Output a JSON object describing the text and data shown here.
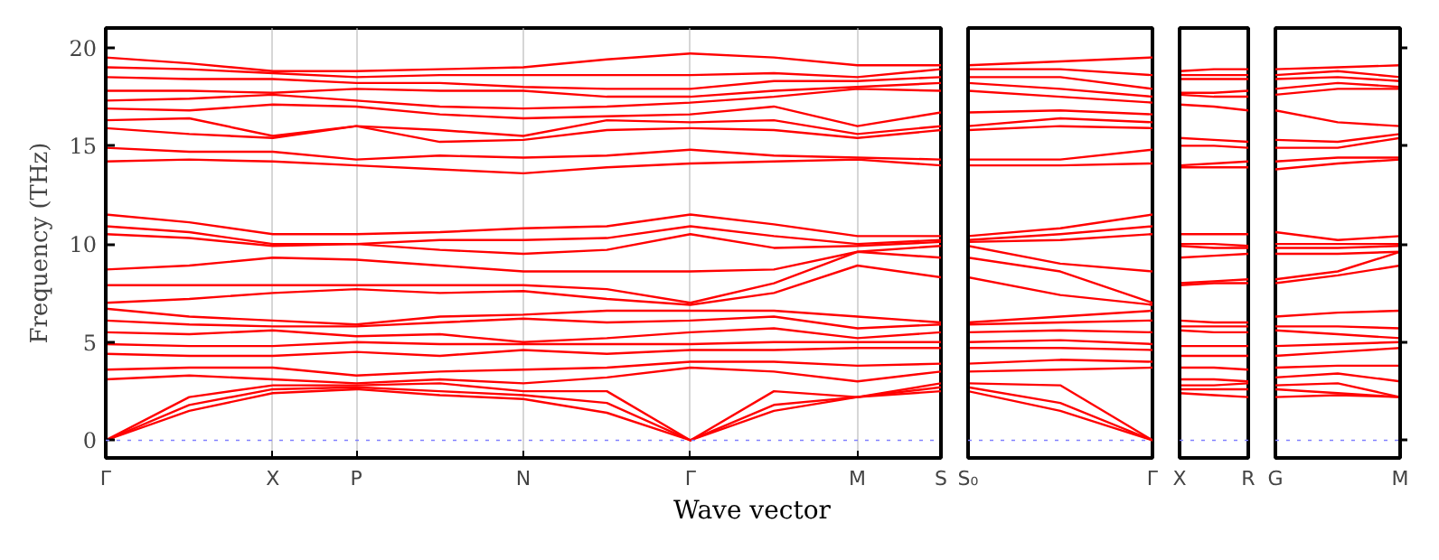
{
  "chart_data": [
    {
      "type": "line",
      "ylabel": "Frequency (THz)",
      "xlabel": "Wave vector",
      "ylim": [
        -0.9,
        21
      ],
      "yticks": [
        0,
        5,
        10,
        15,
        20
      ],
      "categories": [
        "Γ",
        null,
        "X",
        "P",
        null,
        "N",
        null,
        "Γ",
        null,
        "M",
        "S"
      ],
      "grid": "x",
      "ref_lines": [
        {
          "axis": "y",
          "value": 0,
          "color": "#8080ff",
          "line_style": "dotted"
        }
      ],
      "series": [
        {
          "color": "#ff0000",
          "values": [
            0,
            1.5,
            2.4,
            2.6,
            2.3,
            2.1,
            1.4,
            0,
            1.5,
            2.2,
            2.5
          ]
        },
        {
          "color": "#ff0000",
          "values": [
            0,
            1.8,
            2.6,
            2.7,
            2.5,
            2.3,
            1.9,
            0,
            1.8,
            2.2,
            2.7
          ]
        },
        {
          "color": "#ff0000",
          "values": [
            0,
            2.2,
            2.8,
            2.8,
            2.9,
            2.5,
            2.5,
            0,
            2.5,
            2.2,
            2.9
          ]
        },
        {
          "color": "#ff0000",
          "values": [
            3.1,
            3.3,
            3.1,
            2.9,
            3.1,
            2.9,
            3.2,
            3.7,
            3.5,
            3.0,
            3.5
          ]
        },
        {
          "color": "#ff0000",
          "values": [
            3.6,
            3.7,
            3.7,
            3.3,
            3.5,
            3.6,
            3.7,
            4.0,
            4.0,
            3.8,
            3.9
          ]
        },
        {
          "color": "#ff0000",
          "values": [
            4.4,
            4.3,
            4.3,
            4.5,
            4.3,
            4.6,
            4.4,
            4.6,
            4.6,
            4.7,
            4.7
          ]
        },
        {
          "color": "#ff0000",
          "values": [
            4.9,
            4.8,
            4.8,
            5.0,
            4.9,
            4.9,
            4.9,
            4.9,
            5.0,
            5.0,
            5.0
          ]
        },
        {
          "color": "#ff0000",
          "values": [
            5.5,
            5.4,
            5.6,
            5.3,
            5.4,
            5.0,
            5.2,
            5.5,
            5.7,
            5.2,
            5.5
          ]
        },
        {
          "color": "#ff0000",
          "values": [
            6.1,
            5.9,
            5.8,
            5.8,
            6.0,
            6.2,
            6.0,
            6.1,
            6.3,
            5.7,
            5.9
          ]
        },
        {
          "color": "#ff0000",
          "values": [
            6.7,
            6.3,
            6.1,
            5.9,
            6.3,
            6.4,
            6.6,
            6.6,
            6.6,
            6.3,
            6.0
          ]
        },
        {
          "color": "#ff0000",
          "values": [
            7.0,
            7.2,
            7.5,
            7.7,
            7.5,
            7.6,
            7.2,
            6.9,
            7.5,
            8.9,
            8.3
          ]
        },
        {
          "color": "#ff0000",
          "values": [
            7.9,
            7.9,
            7.9,
            7.9,
            7.9,
            7.9,
            7.7,
            7.0,
            8.0,
            9.6,
            9.3
          ]
        },
        {
          "color": "#ff0000",
          "values": [
            8.7,
            8.9,
            9.3,
            9.2,
            8.9,
            8.6,
            8.6,
            8.6,
            8.7,
            9.6,
            9.9
          ]
        },
        {
          "color": "#ff0000",
          "values": [
            10.5,
            10.3,
            9.9,
            10.0,
            9.7,
            9.5,
            9.7,
            10.5,
            9.8,
            9.9,
            10.1
          ]
        },
        {
          "color": "#ff0000",
          "values": [
            10.9,
            10.6,
            10.0,
            10.0,
            10.2,
            10.2,
            10.3,
            10.9,
            10.4,
            10.0,
            10.2
          ]
        },
        {
          "color": "#ff0000",
          "values": [
            11.5,
            11.1,
            10.5,
            10.5,
            10.6,
            10.8,
            10.9,
            11.5,
            11.0,
            10.4,
            10.4
          ]
        },
        {
          "color": "#ff0000",
          "values": [
            14.2,
            14.3,
            14.2,
            14.0,
            13.8,
            13.6,
            13.9,
            14.1,
            14.2,
            14.3,
            14.0
          ]
        },
        {
          "color": "#ff0000",
          "values": [
            14.9,
            14.7,
            14.7,
            14.3,
            14.5,
            14.4,
            14.5,
            14.8,
            14.5,
            14.4,
            14.3
          ]
        },
        {
          "color": "#ff0000",
          "values": [
            15.9,
            15.6,
            15.4,
            16.0,
            15.2,
            15.3,
            15.8,
            15.9,
            15.8,
            15.4,
            15.8
          ]
        },
        {
          "color": "#ff0000",
          "values": [
            16.3,
            16.4,
            15.5,
            16.0,
            15.8,
            15.5,
            16.3,
            16.2,
            16.3,
            15.6,
            16.0
          ]
        },
        {
          "color": "#ff0000",
          "values": [
            16.9,
            16.8,
            17.1,
            17.0,
            16.6,
            16.4,
            16.5,
            16.6,
            17.0,
            16.0,
            16.7
          ]
        },
        {
          "color": "#ff0000",
          "values": [
            17.3,
            17.4,
            17.6,
            17.3,
            17.0,
            16.9,
            17.0,
            17.2,
            17.5,
            17.9,
            17.8
          ]
        },
        {
          "color": "#ff0000",
          "values": [
            17.8,
            17.8,
            17.7,
            17.9,
            17.8,
            17.8,
            17.5,
            17.5,
            17.8,
            18.0,
            18.2
          ]
        },
        {
          "color": "#ff0000",
          "values": [
            18.5,
            18.4,
            18.4,
            18.2,
            18.2,
            18.0,
            17.9,
            17.9,
            18.3,
            18.3,
            18.5
          ]
        },
        {
          "color": "#ff0000",
          "values": [
            19.0,
            18.9,
            18.7,
            18.5,
            18.6,
            18.6,
            18.6,
            18.6,
            18.7,
            18.5,
            18.9
          ]
        },
        {
          "color": "#ff0000",
          "values": [
            19.5,
            19.2,
            18.8,
            18.8,
            18.9,
            19.0,
            19.4,
            19.7,
            19.5,
            19.1,
            19.1
          ]
        }
      ]
    },
    {
      "type": "line",
      "ylim": [
        -0.9,
        21
      ],
      "tick_labels": "x",
      "categories": [
        "S₀",
        null,
        "Γ"
      ],
      "ref_lines": [
        {
          "axis": "y",
          "value": 0,
          "color": "#8080ff",
          "line_style": "dotted"
        }
      ],
      "series": [
        {
          "color": "#ff0000",
          "values": [
            2.5,
            1.5,
            0
          ]
        },
        {
          "color": "#ff0000",
          "values": [
            2.7,
            1.9,
            0
          ]
        },
        {
          "color": "#ff0000",
          "values": [
            2.9,
            2.8,
            0
          ]
        },
        {
          "color": "#ff0000",
          "values": [
            3.5,
            3.6,
            3.7
          ]
        },
        {
          "color": "#ff0000",
          "values": [
            3.9,
            4.1,
            4.0
          ]
        },
        {
          "color": "#ff0000",
          "values": [
            4.7,
            4.7,
            4.6
          ]
        },
        {
          "color": "#ff0000",
          "values": [
            5.0,
            5.1,
            4.9
          ]
        },
        {
          "color": "#ff0000",
          "values": [
            5.5,
            5.6,
            5.5
          ]
        },
        {
          "color": "#ff0000",
          "values": [
            5.9,
            6.0,
            6.1
          ]
        },
        {
          "color": "#ff0000",
          "values": [
            6.0,
            6.3,
            6.6
          ]
        },
        {
          "color": "#ff0000",
          "values": [
            8.3,
            7.4,
            6.9
          ]
        },
        {
          "color": "#ff0000",
          "values": [
            9.3,
            8.6,
            7.0
          ]
        },
        {
          "color": "#ff0000",
          "values": [
            9.9,
            9.0,
            8.6
          ]
        },
        {
          "color": "#ff0000",
          "values": [
            10.1,
            10.2,
            10.5
          ]
        },
        {
          "color": "#ff0000",
          "values": [
            10.2,
            10.5,
            10.9
          ]
        },
        {
          "color": "#ff0000",
          "values": [
            10.4,
            10.8,
            11.5
          ]
        },
        {
          "color": "#ff0000",
          "values": [
            14.0,
            14.0,
            14.1
          ]
        },
        {
          "color": "#ff0000",
          "values": [
            14.3,
            14.3,
            14.8
          ]
        },
        {
          "color": "#ff0000",
          "values": [
            15.8,
            16.0,
            15.9
          ]
        },
        {
          "color": "#ff0000",
          "values": [
            16.0,
            16.4,
            16.2
          ]
        },
        {
          "color": "#ff0000",
          "values": [
            16.7,
            16.8,
            16.6
          ]
        },
        {
          "color": "#ff0000",
          "values": [
            17.8,
            17.5,
            17.2
          ]
        },
        {
          "color": "#ff0000",
          "values": [
            18.2,
            17.9,
            17.5
          ]
        },
        {
          "color": "#ff0000",
          "values": [
            18.5,
            18.5,
            17.9
          ]
        },
        {
          "color": "#ff0000",
          "values": [
            18.9,
            18.9,
            18.6
          ]
        },
        {
          "color": "#ff0000",
          "values": [
            19.1,
            19.3,
            19.5
          ]
        }
      ]
    },
    {
      "type": "line",
      "ylim": [
        -0.9,
        21
      ],
      "tick_labels": "x",
      "categories": [
        "X",
        null,
        "R"
      ],
      "ref_lines": [
        {
          "axis": "y",
          "value": 0,
          "color": "#8080ff",
          "line_style": "dotted"
        }
      ],
      "series": [
        {
          "color": "#ff0000",
          "values": [
            2.4,
            2.3,
            2.2
          ]
        },
        {
          "color": "#ff0000",
          "values": [
            2.6,
            2.6,
            2.6
          ]
        },
        {
          "color": "#ff0000",
          "values": [
            2.8,
            2.8,
            2.9
          ]
        },
        {
          "color": "#ff0000",
          "values": [
            3.1,
            3.1,
            3.0
          ]
        },
        {
          "color": "#ff0000",
          "values": [
            3.7,
            3.7,
            3.6
          ]
        },
        {
          "color": "#ff0000",
          "values": [
            4.3,
            4.3,
            4.3
          ]
        },
        {
          "color": "#ff0000",
          "values": [
            4.8,
            4.8,
            4.8
          ]
        },
        {
          "color": "#ff0000",
          "values": [
            5.6,
            5.5,
            5.5
          ]
        },
        {
          "color": "#ff0000",
          "values": [
            5.8,
            5.8,
            5.8
          ]
        },
        {
          "color": "#ff0000",
          "values": [
            6.1,
            6.0,
            6.0
          ]
        },
        {
          "color": "#ff0000",
          "values": [
            7.9,
            8.0,
            8.0
          ]
        },
        {
          "color": "#ff0000",
          "values": [
            8.0,
            8.1,
            8.2
          ]
        },
        {
          "color": "#ff0000",
          "values": [
            9.3,
            9.4,
            9.5
          ]
        },
        {
          "color": "#ff0000",
          "values": [
            9.9,
            9.8,
            9.8
          ]
        },
        {
          "color": "#ff0000",
          "values": [
            10.0,
            10.0,
            9.9
          ]
        },
        {
          "color": "#ff0000",
          "values": [
            10.5,
            10.5,
            10.5
          ]
        },
        {
          "color": "#ff0000",
          "values": [
            13.9,
            13.9,
            13.9
          ]
        },
        {
          "color": "#ff0000",
          "values": [
            14.0,
            14.1,
            14.2
          ]
        },
        {
          "color": "#ff0000",
          "values": [
            15.0,
            15.0,
            14.9
          ]
        },
        {
          "color": "#ff0000",
          "values": [
            15.4,
            15.3,
            15.2
          ]
        },
        {
          "color": "#ff0000",
          "values": [
            17.1,
            17.0,
            16.8
          ]
        },
        {
          "color": "#ff0000",
          "values": [
            17.6,
            17.5,
            17.5
          ]
        },
        {
          "color": "#ff0000",
          "values": [
            17.7,
            17.7,
            17.8
          ]
        },
        {
          "color": "#ff0000",
          "values": [
            18.4,
            18.4,
            18.4
          ]
        },
        {
          "color": "#ff0000",
          "values": [
            18.6,
            18.6,
            18.6
          ]
        },
        {
          "color": "#ff0000",
          "values": [
            18.8,
            18.9,
            18.9
          ]
        }
      ]
    },
    {
      "type": "line",
      "ylim": [
        -0.9,
        21
      ],
      "yticks": [
        {
          "value": 0,
          "label": null
        },
        {
          "value": 5,
          "label": null
        },
        {
          "value": 10,
          "label": null
        },
        {
          "value": 15,
          "label": null
        },
        {
          "value": 20,
          "label": null
        }
      ],
      "tick_labels": "x",
      "categories": [
        "G",
        null,
        "M"
      ],
      "ref_lines": [
        {
          "axis": "y",
          "value": 0,
          "color": "#8080ff",
          "line_style": "dotted"
        }
      ],
      "series": [
        {
          "color": "#ff0000",
          "values": [
            2.2,
            2.3,
            2.2
          ]
        },
        {
          "color": "#ff0000",
          "values": [
            2.6,
            2.4,
            2.2
          ]
        },
        {
          "color": "#ff0000",
          "values": [
            2.8,
            2.9,
            2.2
          ]
        },
        {
          "color": "#ff0000",
          "values": [
            3.2,
            3.4,
            3.0
          ]
        },
        {
          "color": "#ff0000",
          "values": [
            3.7,
            3.8,
            3.8
          ]
        },
        {
          "color": "#ff0000",
          "values": [
            4.3,
            4.5,
            4.7
          ]
        },
        {
          "color": "#ff0000",
          "values": [
            4.8,
            4.9,
            5.0
          ]
        },
        {
          "color": "#ff0000",
          "values": [
            5.6,
            5.4,
            5.2
          ]
        },
        {
          "color": "#ff0000",
          "values": [
            5.8,
            5.8,
            5.7
          ]
        },
        {
          "color": "#ff0000",
          "values": [
            6.3,
            6.5,
            6.6
          ]
        },
        {
          "color": "#ff0000",
          "values": [
            8.0,
            8.4,
            8.9
          ]
        },
        {
          "color": "#ff0000",
          "values": [
            8.2,
            8.6,
            9.6
          ]
        },
        {
          "color": "#ff0000",
          "values": [
            9.5,
            9.5,
            9.6
          ]
        },
        {
          "color": "#ff0000",
          "values": [
            9.8,
            9.8,
            9.9
          ]
        },
        {
          "color": "#ff0000",
          "values": [
            10.0,
            10.0,
            10.0
          ]
        },
        {
          "color": "#ff0000",
          "values": [
            10.6,
            10.2,
            10.4
          ]
        },
        {
          "color": "#ff0000",
          "values": [
            13.8,
            14.1,
            14.3
          ]
        },
        {
          "color": "#ff0000",
          "values": [
            14.2,
            14.4,
            14.4
          ]
        },
        {
          "color": "#ff0000",
          "values": [
            14.9,
            14.9,
            15.4
          ]
        },
        {
          "color": "#ff0000",
          "values": [
            15.3,
            15.2,
            15.6
          ]
        },
        {
          "color": "#ff0000",
          "values": [
            16.8,
            16.2,
            16.0
          ]
        },
        {
          "color": "#ff0000",
          "values": [
            17.6,
            17.9,
            17.9
          ]
        },
        {
          "color": "#ff0000",
          "values": [
            17.9,
            18.2,
            18.0
          ]
        },
        {
          "color": "#ff0000",
          "values": [
            18.4,
            18.5,
            18.3
          ]
        },
        {
          "color": "#ff0000",
          "values": [
            18.6,
            18.8,
            18.5
          ]
        },
        {
          "color": "#ff0000",
          "values": [
            18.9,
            19.0,
            19.1
          ]
        }
      ]
    }
  ]
}
